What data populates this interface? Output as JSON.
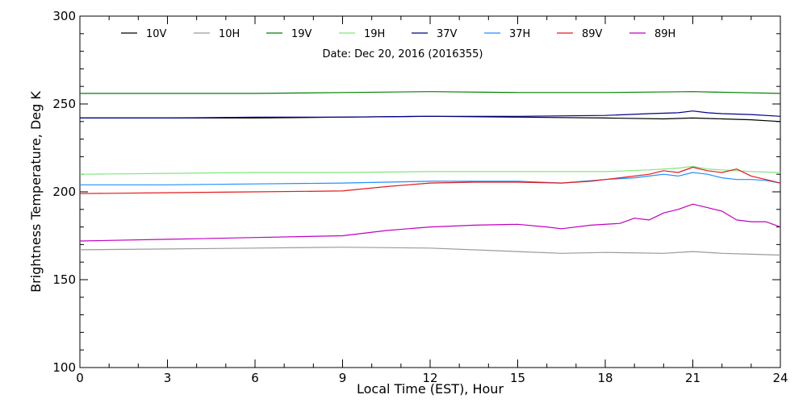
{
  "chart_data": {
    "type": "line",
    "subtitle": "Date: Dec 20, 2016 (2016355)",
    "xlabel": "Local Time (EST), Hour",
    "ylabel": "Brightness Temperature, Deg K",
    "xlim": [
      0,
      24
    ],
    "ylim": [
      100,
      300
    ],
    "xticks": [
      0,
      3,
      6,
      9,
      12,
      15,
      18,
      21,
      24
    ],
    "yticks": [
      100,
      150,
      200,
      250,
      300
    ],
    "grid": false,
    "legend_position": "top",
    "series": [
      {
        "name": "10V",
        "color": "#000000",
        "x": [
          0,
          3,
          6,
          9,
          12,
          15,
          18,
          20,
          21,
          22,
          23,
          24
        ],
        "y": [
          242,
          242,
          242,
          242.5,
          243,
          242.5,
          242,
          241.5,
          242,
          241.5,
          241,
          240
        ]
      },
      {
        "name": "10H",
        "color": "#9a9a9a",
        "x": [
          0,
          3,
          6,
          9,
          12,
          15,
          16.5,
          18,
          20,
          21,
          22,
          23,
          24
        ],
        "y": [
          167,
          167.5,
          168,
          168.5,
          168,
          166,
          165,
          165.5,
          165,
          166,
          165,
          164.5,
          164
        ]
      },
      {
        "name": "19V",
        "color": "#008000",
        "x": [
          0,
          3,
          6,
          9,
          12,
          15,
          18,
          21,
          24
        ],
        "y": [
          256,
          256,
          256,
          256.5,
          257,
          256.5,
          256.5,
          257,
          256
        ]
      },
      {
        "name": "19H",
        "color": "#7ee87e",
        "x": [
          0,
          3,
          6,
          9,
          12,
          15,
          18,
          19.5,
          20.5,
          21,
          21.5,
          22,
          22.5,
          23,
          24
        ],
        "y": [
          210,
          210.5,
          211,
          211,
          211.5,
          211.5,
          211.5,
          212.5,
          213.5,
          214.5,
          213,
          212.5,
          212,
          211.5,
          211
        ]
      },
      {
        "name": "37V",
        "color": "#00008b",
        "x": [
          0,
          3,
          6,
          9,
          12,
          15,
          18,
          19.5,
          20.5,
          21,
          21.5,
          22,
          23,
          24
        ],
        "y": [
          242,
          242,
          242.5,
          242.5,
          243,
          243,
          243.5,
          244.5,
          245,
          246,
          245,
          244.5,
          244,
          243
        ]
      },
      {
        "name": "37H",
        "color": "#1e90ff",
        "x": [
          0,
          3,
          6,
          9,
          12,
          15,
          16.5,
          18,
          19,
          19.5,
          20,
          20.5,
          21,
          21.5,
          22,
          22.5,
          23,
          23.5,
          24
        ],
        "y": [
          204,
          204,
          204.5,
          205,
          206,
          206,
          205,
          207,
          208,
          209,
          210,
          209,
          211,
          210,
          208,
          207,
          207,
          206.5,
          205
        ]
      },
      {
        "name": "89V",
        "color": "#e41a1c",
        "x": [
          0,
          3,
          6,
          9,
          10.5,
          12,
          13.5,
          15,
          16.5,
          17.5,
          18.5,
          19.5,
          20,
          20.5,
          21,
          21.5,
          22,
          22.5,
          23,
          23.5,
          24
        ],
        "y": [
          199,
          199.5,
          200,
          200.5,
          203,
          205,
          205.5,
          205.5,
          205,
          206,
          208,
          210,
          212,
          211,
          214,
          212,
          211,
          213,
          209,
          207,
          205
        ]
      },
      {
        "name": "89H",
        "color": "#c000c0",
        "x": [
          0,
          3,
          6,
          9,
          10.5,
          12,
          13.5,
          15,
          16,
          16.5,
          17.5,
          18.5,
          19,
          19.5,
          20,
          20.5,
          21,
          21.5,
          22,
          22.5,
          23,
          23.5,
          24
        ],
        "y": [
          172,
          173,
          174,
          175,
          178,
          180,
          181,
          181.5,
          180,
          179,
          181,
          182,
          185,
          184,
          188,
          190,
          193,
          191,
          189,
          184,
          183,
          183,
          180
        ]
      }
    ]
  }
}
